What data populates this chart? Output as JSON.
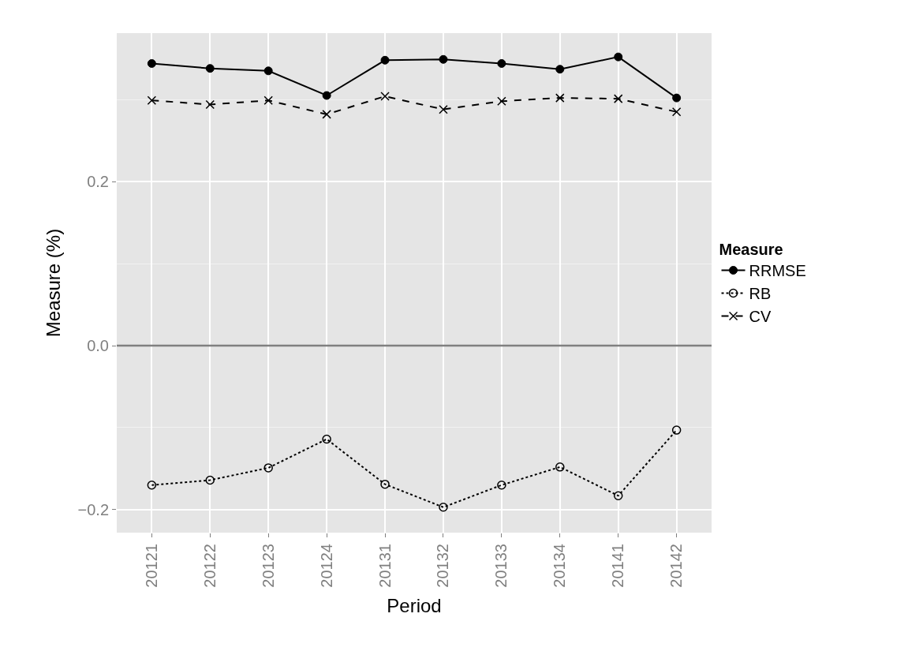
{
  "chart_data": {
    "type": "line",
    "xlabel": "Period",
    "ylabel": "Measure (%)",
    "legend_title": "Measure",
    "categories": [
      "20121",
      "20122",
      "20123",
      "20124",
      "20131",
      "20132",
      "20133",
      "20134",
      "20141",
      "20142"
    ],
    "series": [
      {
        "name": "RRMSE",
        "color": "#000000",
        "marker": "circle",
        "line_style": "solid",
        "values": [
          0.344,
          0.338,
          0.335,
          0.305,
          0.348,
          0.349,
          0.344,
          0.337,
          0.352,
          0.302
        ]
      },
      {
        "name": "RB",
        "color": "#000000",
        "marker": "circle-open",
        "line_style": "dotted",
        "values": [
          -0.17,
          -0.164,
          -0.149,
          -0.114,
          -0.169,
          -0.197,
          -0.17,
          -0.148,
          -0.183,
          -0.103
        ]
      },
      {
        "name": "CV",
        "color": "#000000",
        "marker": "cross",
        "line_style": "dashed",
        "values": [
          0.299,
          0.294,
          0.299,
          0.282,
          0.304,
          0.288,
          0.298,
          0.302,
          0.301,
          0.285
        ]
      }
    ],
    "ylim": [
      -0.228,
      0.381
    ],
    "yticks": [
      {
        "value": -0.2,
        "label": "−0.2"
      },
      {
        "value": 0.0,
        "label": "0.0"
      },
      {
        "value": 0.2,
        "label": "0.2"
      }
    ],
    "ref_lines": [
      {
        "axis": "y",
        "value": 0.0,
        "color": "#808080"
      }
    ],
    "grid": true,
    "legend": "right"
  }
}
